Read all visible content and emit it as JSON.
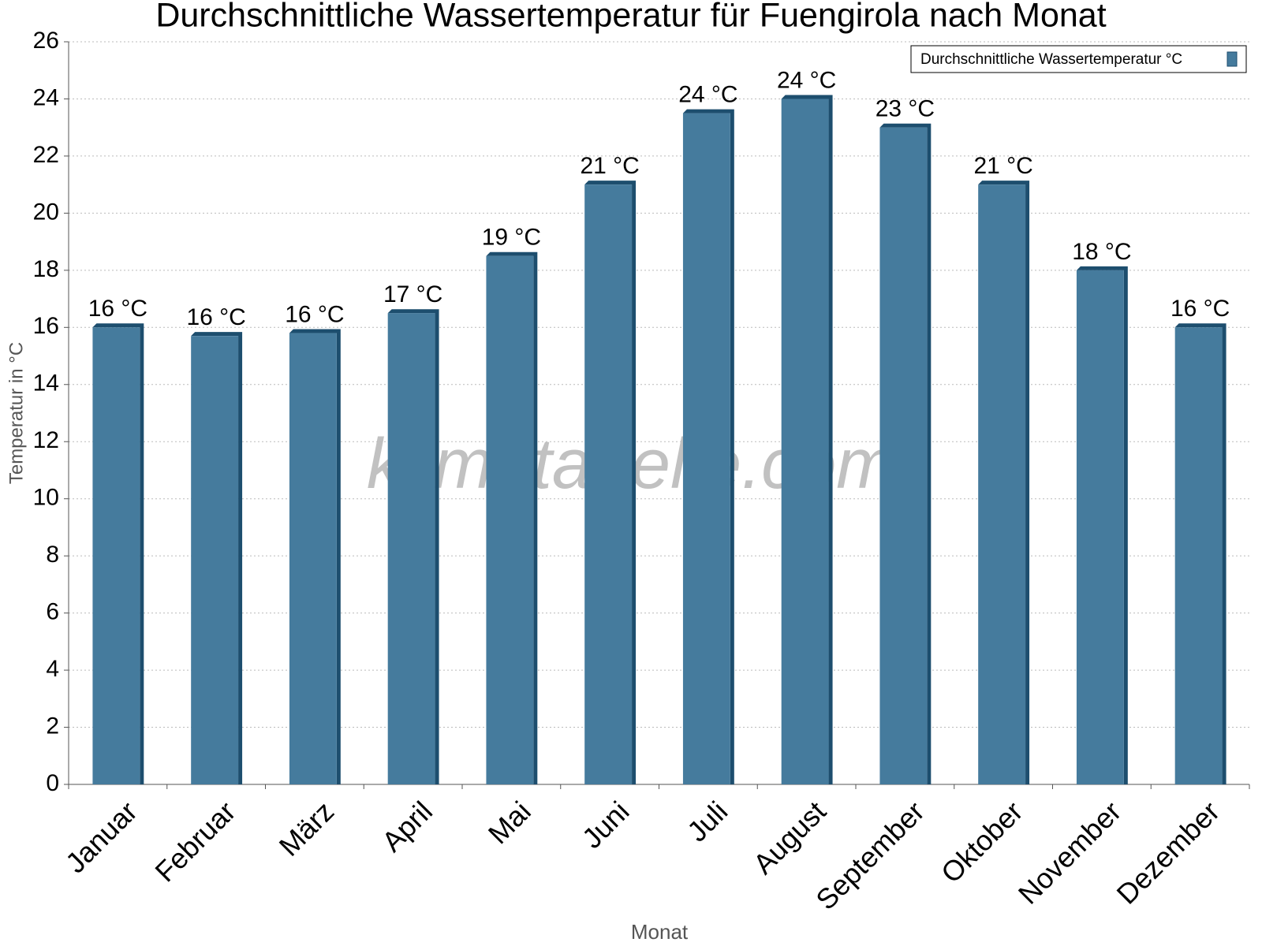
{
  "chart_data": {
    "type": "bar",
    "title": "Durchschnittliche Wassertemperatur für Fuengirola nach Monat",
    "x_label": "Monat",
    "y_label": "Temperatur in °C",
    "watermark": "klimatabelle.com",
    "categories": [
      "Januar",
      "Februar",
      "März",
      "April",
      "Mai",
      "Juni",
      "Juli",
      "August",
      "September",
      "Oktober",
      "November",
      "Dezember"
    ],
    "series": [
      {
        "name": "Durchschnittliche Wassertemperatur °C",
        "color": "#457b9d",
        "values": [
          16.0,
          15.7,
          15.8,
          16.5,
          18.5,
          21.0,
          23.5,
          24.0,
          23.0,
          21.0,
          18.0,
          16.0
        ],
        "value_labels": [
          "16 °C",
          "16 °C",
          "16 °C",
          "17 °C",
          "19 °C",
          "21 °C",
          "24 °C",
          "24 °C",
          "23 °C",
          "21 °C",
          "18 °C",
          "16 °C"
        ]
      }
    ],
    "ylim": [
      0,
      26
    ],
    "yticks": [
      0,
      2,
      4,
      6,
      8,
      10,
      12,
      14,
      16,
      18,
      20,
      22,
      24,
      26
    ],
    "grid": true,
    "legend": "top-right"
  }
}
